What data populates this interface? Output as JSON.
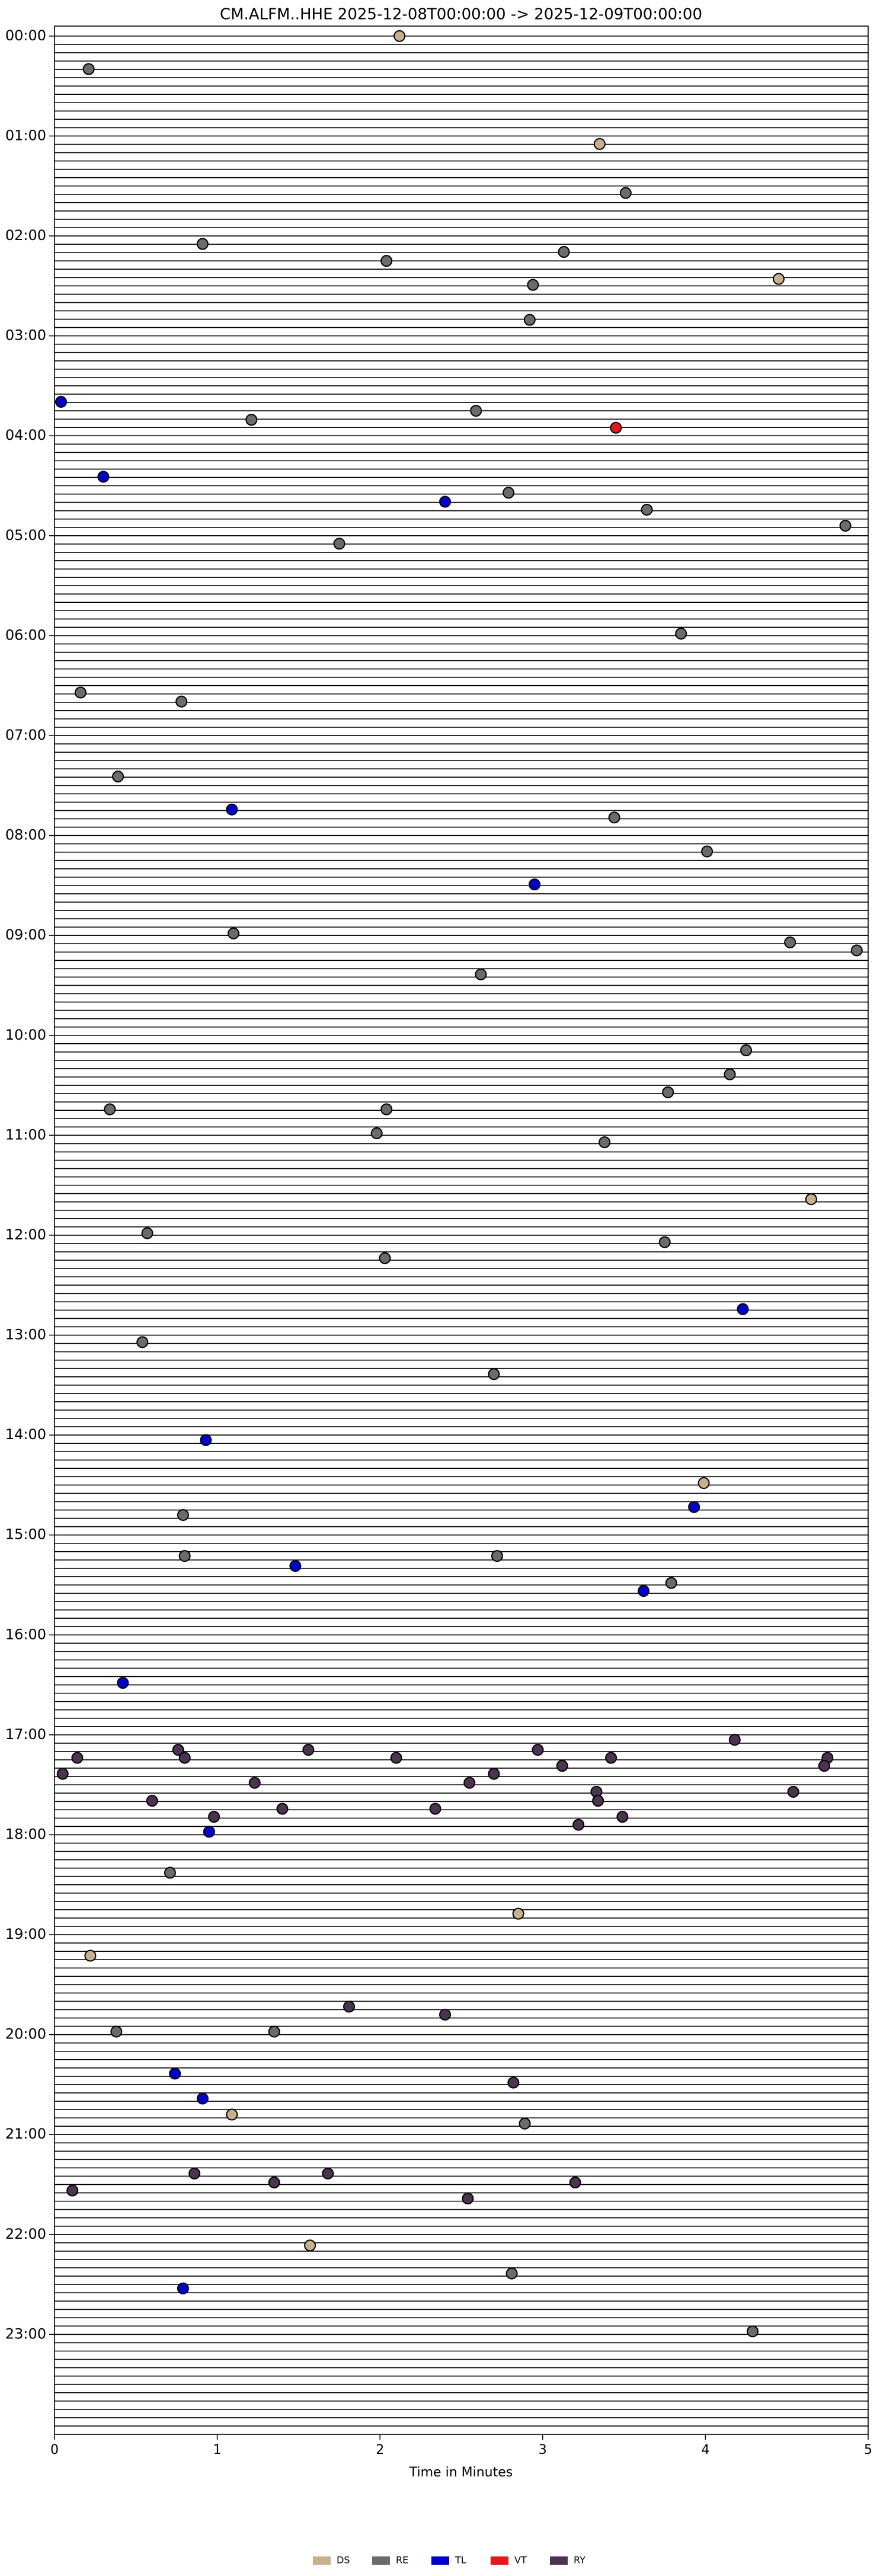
{
  "chart_data": {
    "type": "scatter",
    "title": "CM.ALFM..HHE  2025-12-08T00:00:00 -> 2025-12-09T00:00:00",
    "x_label": "Time in Minutes",
    "xlim": [
      0,
      5
    ],
    "xticks": [
      0,
      1,
      2,
      3,
      4,
      5
    ],
    "ylim": [
      -0.1,
      24
    ],
    "y_inverted": true,
    "yticks": [
      {
        "value": 0,
        "label": "00:00"
      },
      {
        "value": 1,
        "label": "01:00"
      },
      {
        "value": 2,
        "label": "02:00"
      },
      {
        "value": 3,
        "label": "03:00"
      },
      {
        "value": 4,
        "label": "04:00"
      },
      {
        "value": 5,
        "label": "05:00"
      },
      {
        "value": 6,
        "label": "06:00"
      },
      {
        "value": 7,
        "label": "07:00"
      },
      {
        "value": 8,
        "label": "08:00"
      },
      {
        "value": 9,
        "label": "09:00"
      },
      {
        "value": 10,
        "label": "10:00"
      },
      {
        "value": 11,
        "label": "11:00"
      },
      {
        "value": 12,
        "label": "12:00"
      },
      {
        "value": 13,
        "label": "13:00"
      },
      {
        "value": 14,
        "label": "14:00"
      },
      {
        "value": 15,
        "label": "15:00"
      },
      {
        "value": 16,
        "label": "16:00"
      },
      {
        "value": 17,
        "label": "17:00"
      },
      {
        "value": 18,
        "label": "18:00"
      },
      {
        "value": 19,
        "label": "19:00"
      },
      {
        "value": 20,
        "label": "20:00"
      },
      {
        "value": 21,
        "label": "21:00"
      },
      {
        "value": 22,
        "label": "22:00"
      },
      {
        "value": 23,
        "label": "23:00"
      }
    ],
    "legend_position": "bottom",
    "series": [
      {
        "name": "DS",
        "color": "#c8b08c",
        "x": [
          2.12,
          3.35,
          4.45,
          3.99,
          4.65,
          2.85,
          0.22,
          1.09,
          1.57
        ],
        "y": [
          0.0,
          1.08,
          2.43,
          14.48,
          11.64,
          18.79,
          19.21,
          20.8,
          22.11
        ]
      },
      {
        "name": "RE",
        "color": "#6b6b6b",
        "x": [
          0.21,
          3.51,
          0.91,
          2.04,
          3.13,
          2.94,
          2.92,
          1.21,
          2.59,
          2.79,
          3.64,
          1.75,
          4.86,
          3.85,
          0.16,
          0.78,
          0.39,
          3.44,
          4.01,
          1.1,
          4.52,
          4.93,
          2.62,
          4.25,
          4.15,
          2.04,
          0.34,
          3.77,
          1.98,
          3.38,
          0.57,
          2.03,
          3.75,
          0.54,
          2.7,
          0.79,
          0.8,
          2.72,
          3.79,
          0.71,
          0.38,
          1.35,
          2.89,
          2.81,
          4.29
        ],
        "y": [
          0.33,
          1.57,
          2.08,
          2.25,
          2.16,
          2.49,
          2.84,
          3.84,
          3.75,
          4.57,
          4.74,
          5.08,
          4.9,
          5.98,
          6.57,
          6.66,
          7.41,
          7.82,
          8.16,
          8.98,
          9.07,
          9.15,
          9.39,
          10.15,
          10.39,
          10.74,
          10.74,
          10.57,
          10.98,
          11.07,
          11.98,
          12.23,
          12.07,
          13.07,
          13.39,
          14.8,
          15.21,
          15.21,
          15.48,
          18.38,
          19.97,
          19.97,
          20.89,
          22.39,
          22.97
        ]
      },
      {
        "name": "TL",
        "color": "#0000cc",
        "x": [
          0.04,
          0.3,
          2.4,
          2.95,
          1.09,
          4.23,
          0.93,
          3.93,
          1.48,
          3.62,
          0.42,
          0.95,
          0.74,
          0.91,
          0.79
        ],
        "y": [
          3.66,
          4.41,
          4.66,
          8.49,
          7.74,
          12.74,
          14.05,
          14.72,
          15.31,
          15.56,
          16.48,
          17.97,
          20.39,
          20.64,
          22.54
        ]
      },
      {
        "name": "VT",
        "color": "#e31a1c",
        "x": [
          3.45
        ],
        "y": [
          3.92
        ]
      },
      {
        "name": "RY",
        "color": "#4a3450",
        "x": [
          0.76,
          0.14,
          0.8,
          1.56,
          2.1,
          2.97,
          4.18,
          4.75,
          4.73,
          0.05,
          1.23,
          2.7,
          2.55,
          3.12,
          3.42,
          0.6,
          1.4,
          2.34,
          3.33,
          3.34,
          4.54,
          0.98,
          3.22,
          3.49,
          1.81,
          2.4,
          2.82,
          0.86,
          1.35,
          1.68,
          3.2,
          0.11,
          2.54
        ],
        "y": [
          17.15,
          17.23,
          17.23,
          17.15,
          17.23,
          17.15,
          17.05,
          17.23,
          17.31,
          17.39,
          17.48,
          17.39,
          17.48,
          17.31,
          17.23,
          17.66,
          17.74,
          17.74,
          17.57,
          17.66,
          17.57,
          17.82,
          17.9,
          17.82,
          19.72,
          19.8,
          20.48,
          21.39,
          21.48,
          21.39,
          21.48,
          21.56,
          21.64
        ]
      }
    ]
  }
}
